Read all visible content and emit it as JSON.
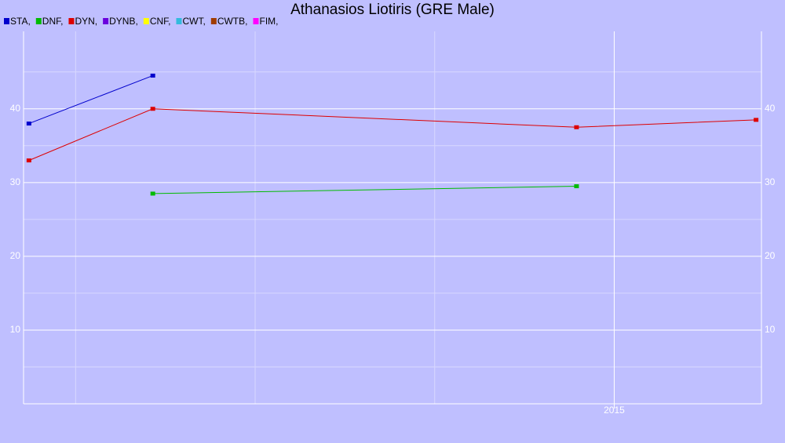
{
  "chart_data": {
    "type": "line",
    "title": "Athanasios Liotiris (GRE Male)",
    "xlim": [
      2011.71,
      2015.82
    ],
    "xticks": [
      2015
    ],
    "xminor": [
      2012,
      2013,
      2014
    ],
    "ylim": [
      0,
      50.5
    ],
    "yticks": [
      10,
      20,
      30,
      40
    ],
    "yminor": [
      5,
      15,
      25,
      35,
      45
    ],
    "grid": true,
    "series": [
      {
        "name": "STA,",
        "color": "#0000cc",
        "x": [
          2011.74,
          2012.43
        ],
        "values": [
          38,
          44.5
        ]
      },
      {
        "name": "DNF,",
        "color": "#00bb00",
        "x": [
          2012.43,
          2014.79
        ],
        "values": [
          28.5,
          29.5
        ]
      },
      {
        "name": "DYN,",
        "color": "#dd0000",
        "x": [
          2011.74,
          2012.43,
          2014.79,
          2015.79
        ],
        "values": [
          33,
          40,
          37.5,
          38.5
        ]
      },
      {
        "name": "DYNB,",
        "color": "#6a00dd",
        "x": [],
        "values": []
      },
      {
        "name": "CNF,",
        "color": "#ffff00",
        "x": [],
        "values": []
      },
      {
        "name": "CWT,",
        "color": "#33bbdd",
        "x": [],
        "values": []
      },
      {
        "name": "CWTB,",
        "color": "#a03c00",
        "x": [],
        "values": []
      },
      {
        "name": "FIM,",
        "color": "#ff00ff",
        "x": [],
        "values": []
      }
    ]
  }
}
